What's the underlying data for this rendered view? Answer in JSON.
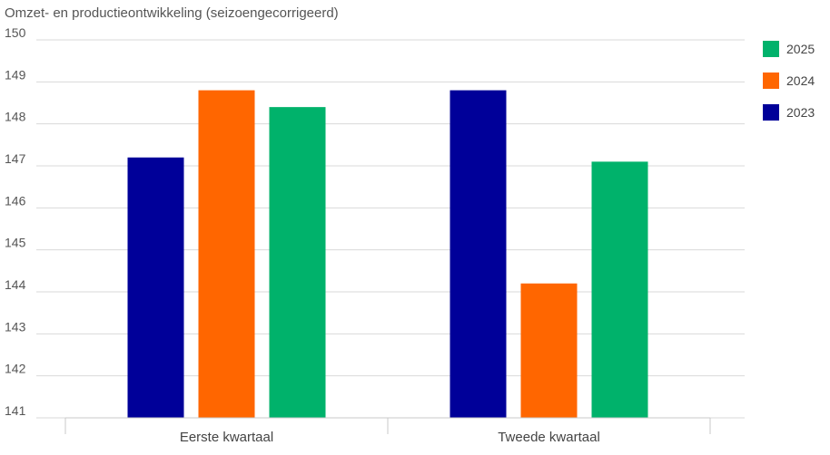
{
  "chart_data": {
    "type": "bar",
    "title": "Omzet- en productieontwikkeling (seizoengecorrigeerd)",
    "xlabel": "",
    "ylabel": "",
    "categories": [
      "Eerste kwartaal",
      "Tweede kwartaal"
    ],
    "series": [
      {
        "name": "2023",
        "color": "#000099",
        "values": [
          147.2,
          148.8
        ]
      },
      {
        "name": "2024",
        "color": "#ff6600",
        "values": [
          148.8,
          144.2
        ]
      },
      {
        "name": "2025",
        "color": "#00b26b",
        "values": [
          148.4,
          147.1
        ]
      }
    ],
    "ylim": [
      141,
      150
    ],
    "yticks": [
      141,
      142,
      143,
      144,
      145,
      146,
      147,
      148,
      149,
      150
    ],
    "legend_order": [
      "2025",
      "2024",
      "2023"
    ],
    "legend_position": "right",
    "grid": true
  }
}
